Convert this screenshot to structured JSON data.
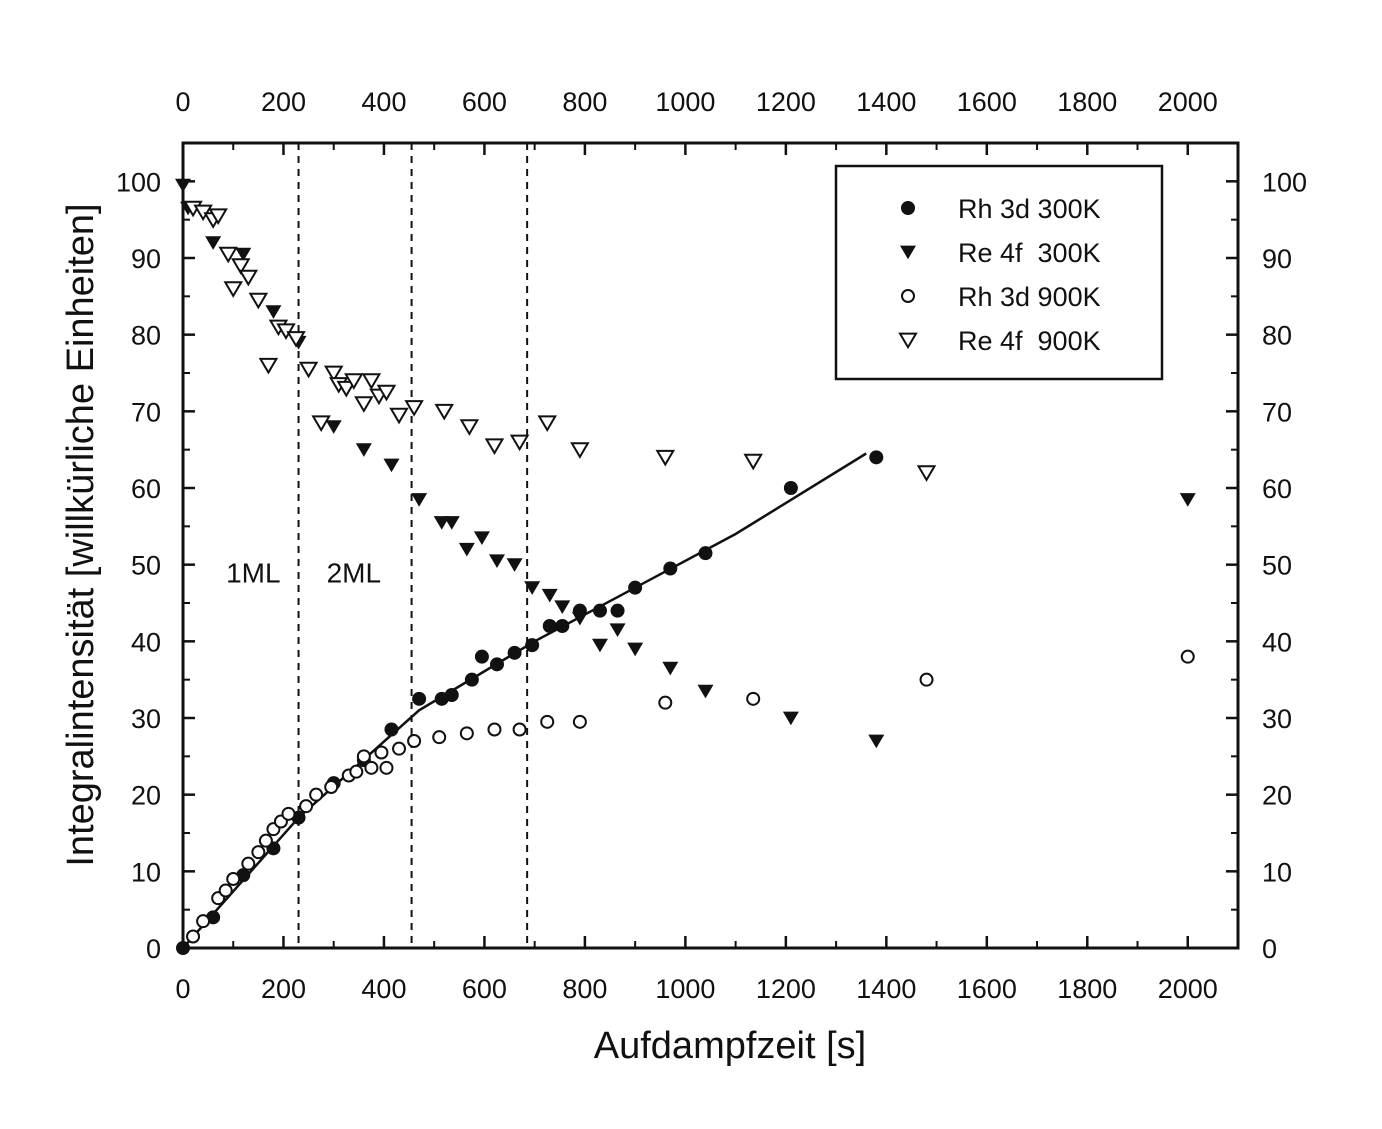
{
  "chart_data": {
    "type": "scatter",
    "xlabel": "Aufdampfzeit [s]",
    "ylabel": "Integralintensität [willkürliche Einheiten]",
    "xlim": [
      0,
      2100
    ],
    "ylim": [
      0,
      105
    ],
    "xticks": [
      0,
      200,
      400,
      600,
      800,
      1000,
      1200,
      1400,
      1600,
      1800,
      2000
    ],
    "yticks": [
      0,
      10,
      20,
      30,
      40,
      50,
      60,
      70,
      80,
      90,
      100
    ],
    "top_axis_mirrors_bottom": true,
    "right_axis_mirrors_left": true,
    "grid": false,
    "legend_position": "top-right",
    "legend": [
      "Rh 3d 300K",
      "Re 4f  300K",
      "Rh 3d 900K",
      "Re 4f  900K"
    ],
    "vlines": [
      230,
      455,
      685
    ],
    "annotations": [
      {
        "text": "1ML",
        "x": 140,
        "y": 49
      },
      {
        "text": "2ML",
        "x": 340,
        "y": 49
      }
    ],
    "series": [
      {
        "name": "Rh 3d 300K",
        "marker": "filled-circle",
        "points": [
          [
            0,
            0
          ],
          [
            60,
            4
          ],
          [
            120,
            9.5
          ],
          [
            180,
            13
          ],
          [
            230,
            17
          ],
          [
            300,
            21.5
          ],
          [
            360,
            24.5
          ],
          [
            415,
            28.5
          ],
          [
            470,
            32.5
          ],
          [
            515,
            32.5
          ],
          [
            535,
            33
          ],
          [
            575,
            35
          ],
          [
            595,
            38
          ],
          [
            625,
            37
          ],
          [
            660,
            38.5
          ],
          [
            695,
            39.5
          ],
          [
            730,
            42
          ],
          [
            755,
            42
          ],
          [
            790,
            44
          ],
          [
            830,
            44
          ],
          [
            865,
            44
          ],
          [
            900,
            47
          ],
          [
            970,
            49.5
          ],
          [
            1040,
            51.5
          ],
          [
            1210,
            60
          ],
          [
            1380,
            64
          ]
        ]
      },
      {
        "name": "Re 4f  300K",
        "marker": "filled-down-triangle",
        "points": [
          [
            0,
            99.5
          ],
          [
            10,
            96.5
          ],
          [
            60,
            92
          ],
          [
            120,
            90.5
          ],
          [
            180,
            83
          ],
          [
            230,
            79
          ],
          [
            300,
            68
          ],
          [
            360,
            65
          ],
          [
            415,
            63
          ],
          [
            470,
            58.5
          ],
          [
            515,
            55.5
          ],
          [
            535,
            55.5
          ],
          [
            565,
            52
          ],
          [
            595,
            53.5
          ],
          [
            625,
            50.5
          ],
          [
            660,
            50
          ],
          [
            695,
            47
          ],
          [
            730,
            46
          ],
          [
            755,
            44.5
          ],
          [
            790,
            43
          ],
          [
            830,
            39.5
          ],
          [
            865,
            41.5
          ],
          [
            900,
            39
          ],
          [
            970,
            36.5
          ],
          [
            1040,
            33.5
          ],
          [
            1210,
            30
          ],
          [
            1380,
            27
          ],
          [
            2000,
            58.5
          ]
        ]
      },
      {
        "name": "Rh 3d 900K",
        "marker": "open-circle",
        "points": [
          [
            20,
            1.5
          ],
          [
            40,
            3.5
          ],
          [
            70,
            6.5
          ],
          [
            85,
            7.5
          ],
          [
            100,
            9
          ],
          [
            130,
            11
          ],
          [
            150,
            12.5
          ],
          [
            165,
            14
          ],
          [
            180,
            15.5
          ],
          [
            195,
            16.5
          ],
          [
            210,
            17.5
          ],
          [
            245,
            18.5
          ],
          [
            265,
            20
          ],
          [
            295,
            21
          ],
          [
            330,
            22.5
          ],
          [
            345,
            23
          ],
          [
            360,
            25
          ],
          [
            375,
            23.5
          ],
          [
            395,
            25.5
          ],
          [
            405,
            23.5
          ],
          [
            430,
            26
          ],
          [
            460,
            27
          ],
          [
            510,
            27.5
          ],
          [
            565,
            28
          ],
          [
            620,
            28.5
          ],
          [
            670,
            28.5
          ],
          [
            725,
            29.5
          ],
          [
            790,
            29.5
          ],
          [
            960,
            32
          ],
          [
            1135,
            32.5
          ],
          [
            1480,
            35
          ],
          [
            2000,
            38
          ]
        ]
      },
      {
        "name": "Re 4f  900K",
        "marker": "open-down-triangle",
        "points": [
          [
            20,
            96.5
          ],
          [
            40,
            96
          ],
          [
            60,
            95
          ],
          [
            70,
            95.5
          ],
          [
            90,
            90.5
          ],
          [
            100,
            86
          ],
          [
            115,
            89
          ],
          [
            130,
            87.5
          ],
          [
            150,
            84.5
          ],
          [
            170,
            76
          ],
          [
            190,
            81
          ],
          [
            205,
            80.5
          ],
          [
            225,
            79.5
          ],
          [
            250,
            75.5
          ],
          [
            275,
            68.5
          ],
          [
            300,
            75
          ],
          [
            310,
            73.5
          ],
          [
            325,
            73
          ],
          [
            340,
            74
          ],
          [
            360,
            71
          ],
          [
            375,
            74
          ],
          [
            390,
            72
          ],
          [
            405,
            72.5
          ],
          [
            430,
            69.5
          ],
          [
            460,
            70.5
          ],
          [
            520,
            70
          ],
          [
            570,
            68
          ],
          [
            620,
            65.5
          ],
          [
            670,
            66
          ],
          [
            725,
            68.5
          ],
          [
            790,
            65
          ],
          [
            960,
            64
          ],
          [
            1135,
            63.5
          ],
          [
            1480,
            62
          ]
        ]
      }
    ],
    "fit_line": [
      [
        0,
        0
      ],
      [
        230,
        17
      ],
      [
        470,
        31
      ],
      [
        700,
        40
      ],
      [
        900,
        47
      ],
      [
        1100,
        54
      ],
      [
        1360,
        64.5
      ]
    ]
  }
}
